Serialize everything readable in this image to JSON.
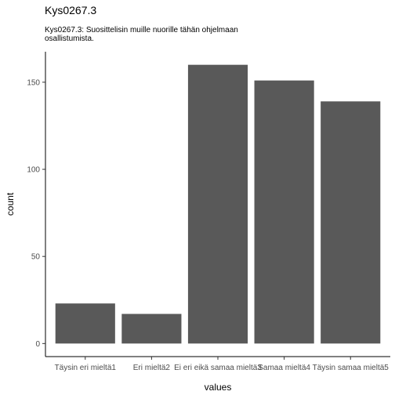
{
  "chart_data": {
    "type": "bar",
    "title": "Kys0267.3",
    "subtitle": "Kys0267.3: Suosittelisin muille nuorille tähän ohjelmaan osallistumista.",
    "xlabel": "values",
    "ylabel": "count",
    "categories": [
      "Täysin eri mieltä1",
      "Eri mieltä2",
      "Ei eri eikä samaa mieltä3",
      "Samaa mieltä4",
      "Täysin samaa mieltä5"
    ],
    "values": [
      23,
      17,
      160,
      151,
      139
    ],
    "yticks": [
      0,
      50,
      100,
      150
    ],
    "ytick_labels": [
      "0",
      "50",
      "100",
      "150"
    ],
    "ylim": [
      -7.5,
      167.5
    ],
    "grid": false,
    "bar_color": "#595959",
    "axis_color": "#000000"
  }
}
